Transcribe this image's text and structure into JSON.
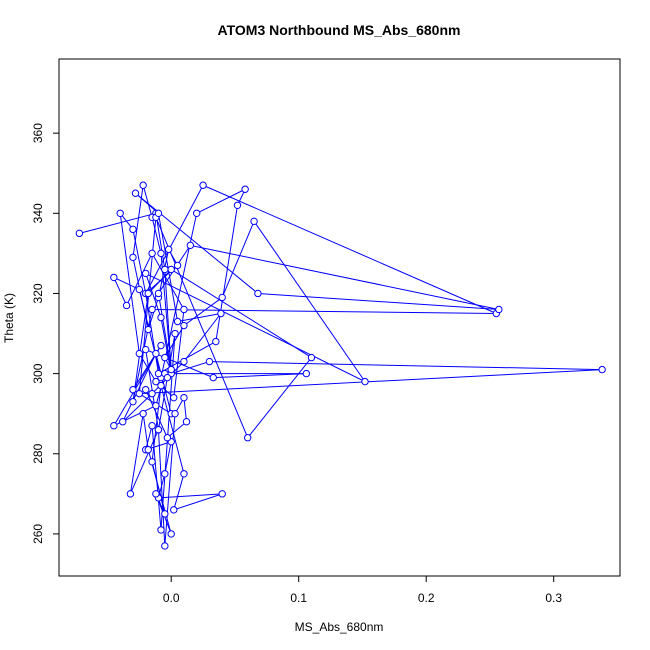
{
  "chart_data": {
    "type": "line",
    "title": "ATOM3 Northbound MS_Abs_680nm",
    "xlabel": "MS_Abs_680nm",
    "ylabel": "Theta (K)",
    "xlim": [
      -0.088,
      0.352
    ],
    "ylim": [
      249.5,
      378.5
    ],
    "x_ticks": [
      "0.0",
      "0.1",
      "0.2",
      "0.3"
    ],
    "y_ticks": [
      "260",
      "280",
      "300",
      "320",
      "340",
      "360"
    ],
    "grid": false,
    "legend": "none",
    "series": [
      {
        "color": "#0000ff",
        "marker": "open-circle",
        "x": [
          -0.072,
          -0.012,
          -0.005,
          0.0,
          -0.008,
          -0.015,
          -0.022,
          -0.03,
          -0.018,
          -0.01,
          -0.002,
          0.005,
          -0.02,
          -0.03,
          -0.04,
          -0.025,
          -0.012,
          0.002,
          0.01,
          -0.015,
          -0.035,
          -0.045,
          -0.025,
          -0.008,
          0.02,
          0.058,
          0.052,
          0.035,
          -0.01,
          -0.02,
          0.025,
          0.255,
          -0.015,
          -0.03,
          -0.018,
          0.0,
          0.11,
          0.06,
          -0.012,
          -0.025,
          0.338,
          0.03,
          0.0,
          -0.008,
          -0.02,
          0.152,
          0.065,
          0.04,
          0.01,
          -0.005,
          0.0,
          -0.01,
          0.015,
          0.257,
          0.068,
          -0.028,
          -0.01,
          0.005,
          0.039,
          0.01,
          -0.015,
          -0.038,
          -0.012,
          0.0,
          -0.03,
          -0.008,
          -0.045,
          -0.012,
          -0.005,
          0.106,
          0.033,
          -0.02,
          -0.01,
          -0.003,
          0.003,
          -0.008,
          -0.015,
          -0.02,
          0.0,
          -0.005,
          -0.01,
          0.04,
          0.002,
          0.01,
          -0.008,
          -0.015,
          -0.005,
          -0.012,
          0.0,
          -0.018,
          -0.022,
          -0.032,
          -0.01,
          -0.005,
          0.003,
          0.01,
          0.012,
          -0.003,
          -0.02
        ],
        "y": [
          335,
          340,
          326,
          301,
          330,
          339,
          347,
          329,
          311,
          319,
          331,
          327,
          320,
          336,
          340,
          305,
          298,
          294,
          316,
          330,
          317,
          324,
          321,
          299,
          340,
          346,
          342,
          308,
          300,
          320,
          347,
          315,
          316,
          293,
          320,
          326,
          304,
          284,
          339,
          295,
          301,
          303,
          300,
          314,
          325,
          298,
          338,
          319,
          312,
          304,
          301,
          320,
          332,
          316,
          320,
          345,
          340,
          313,
          315,
          303,
          295,
          288,
          305,
          290,
          296,
          307,
          287,
          292,
          300,
          300,
          299,
          306,
          286,
          299,
          310,
          261,
          287,
          281,
          283,
          275,
          269,
          270,
          266,
          275,
          297,
          278,
          265,
          270,
          260,
          281,
          290,
          270,
          286,
          257,
          290,
          294,
          288,
          284,
          296
        ]
      }
    ]
  }
}
